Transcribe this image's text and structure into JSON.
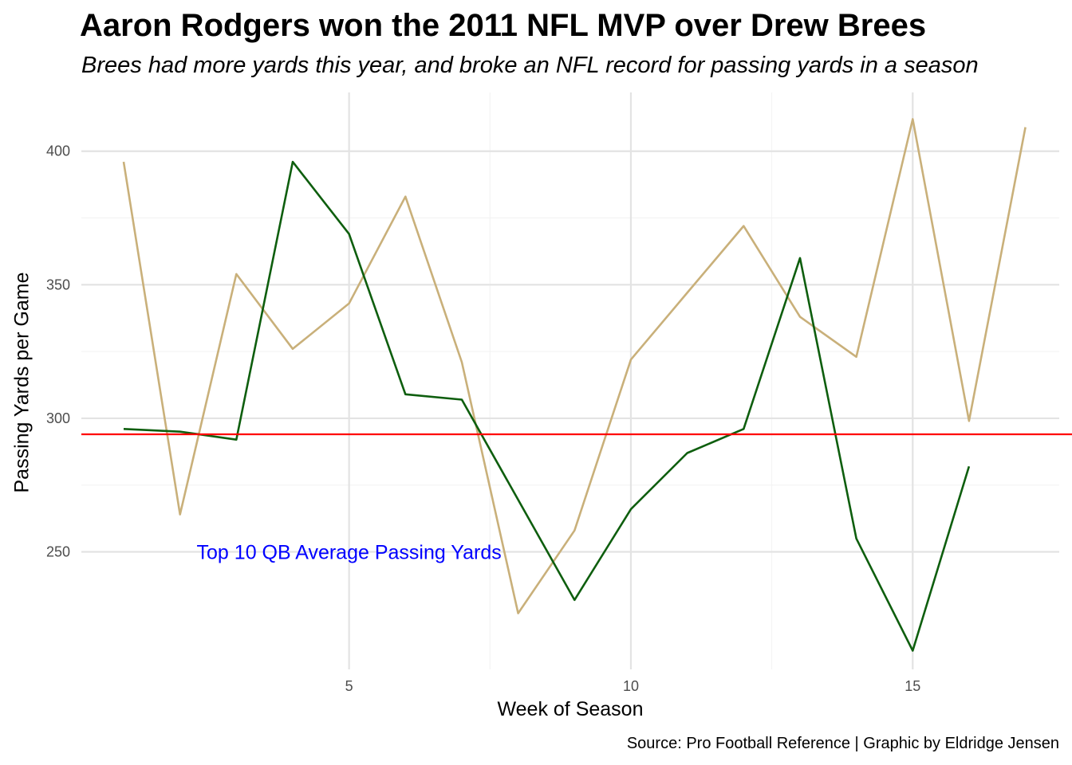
{
  "chart_data": {
    "type": "line",
    "title": "Aaron Rodgers won the 2011 NFL MVP over Drew Brees",
    "subtitle": "Brees had more yards this year, and broke an NFL record for passing yards in a season",
    "xlabel": "Week of Season",
    "ylabel": "Passing Yards per Game",
    "caption": "Source: Pro Football Reference | Graphic by Eldridge Jensen",
    "xlim": [
      0.25,
      17.6
    ],
    "ylim": [
      206,
      422
    ],
    "x_ticks": [
      5,
      10,
      15
    ],
    "y_ticks": [
      250,
      300,
      350,
      400
    ],
    "grid": true,
    "legend": "none",
    "series": [
      {
        "color": "#C9B07A",
        "x": [
          1,
          2,
          3,
          4,
          5,
          6,
          7,
          8,
          9,
          10,
          11,
          12,
          13,
          14,
          15,
          16,
          17
        ],
        "y": [
          396,
          264,
          354,
          326,
          343,
          383,
          321,
          227,
          258,
          322,
          347,
          372,
          338,
          323,
          412,
          299,
          409
        ]
      },
      {
        "color": "#0E5E0E",
        "x": [
          1,
          2,
          3,
          4,
          5,
          6,
          7,
          9,
          10,
          11,
          12,
          13,
          14,
          15,
          16
        ],
        "y": [
          296,
          295,
          292,
          396,
          369,
          309,
          307,
          232,
          266,
          287,
          296,
          360,
          255,
          213,
          282
        ]
      }
    ],
    "reference_line": {
      "y": 294,
      "color": "#FF0000"
    },
    "annotation": {
      "text": "Top 10 QB Average Passing Yards",
      "x": 5,
      "y": 250,
      "color": "#0000FF"
    }
  }
}
